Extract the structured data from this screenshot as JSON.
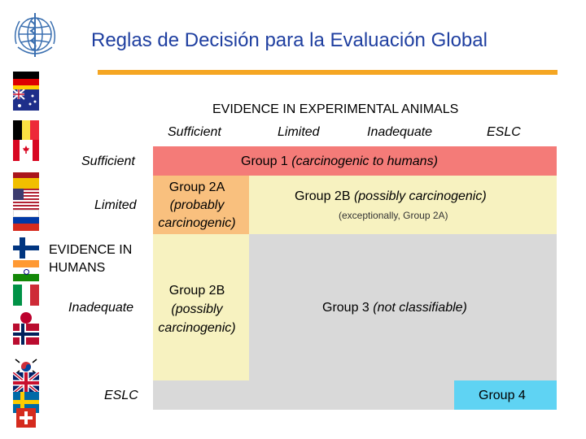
{
  "title": "Reglas de Decisión para la Evaluación Global",
  "logo": {
    "name": "who-emblem"
  },
  "flags": [
    "germany",
    "australia",
    "belgium",
    "canada",
    "spain",
    "usa",
    "russia",
    "finland",
    "india",
    "italy",
    "japan",
    "norway",
    "south-korea",
    "uk",
    "sweden",
    "switzerland"
  ],
  "experimental": {
    "heading": "EVIDENCE IN EXPERIMENTAL ANIMALS",
    "columns": [
      "Sufficient",
      "Limited",
      "Inadequate",
      "ESLC"
    ]
  },
  "humans": {
    "heading": "EVIDENCE IN HUMANS",
    "rows": [
      "Sufficient",
      "Limited",
      "Inadequate",
      "ESLC"
    ]
  },
  "cells": {
    "group1": {
      "prefix": "Group 1 ",
      "detail": "(carcinogenic to humans)"
    },
    "group2a": {
      "line1": "Group 2A",
      "line2": "(probably",
      "line3": "carcinogenic)"
    },
    "group2b_main": {
      "prefix": "Group 2B ",
      "detail": "(possibly carcinogenic)",
      "note": "(exceptionally, Group 2A)"
    },
    "group2b_side": {
      "line1": "Group 2B",
      "line2": "(possibly",
      "line3": "carcinogenic)"
    },
    "group3": {
      "prefix": "Group 3 ",
      "detail": "(not classifiable)"
    },
    "group4": {
      "label": "Group 4"
    }
  },
  "colors": {
    "group1": "#f47b78",
    "group2a": "#f9c07e",
    "group2b": "#f7f2c0",
    "group3": "#d9d9d9",
    "group4": "#5fd3f3",
    "title": "#1f3fa0",
    "rule": "#f5a623"
  }
}
